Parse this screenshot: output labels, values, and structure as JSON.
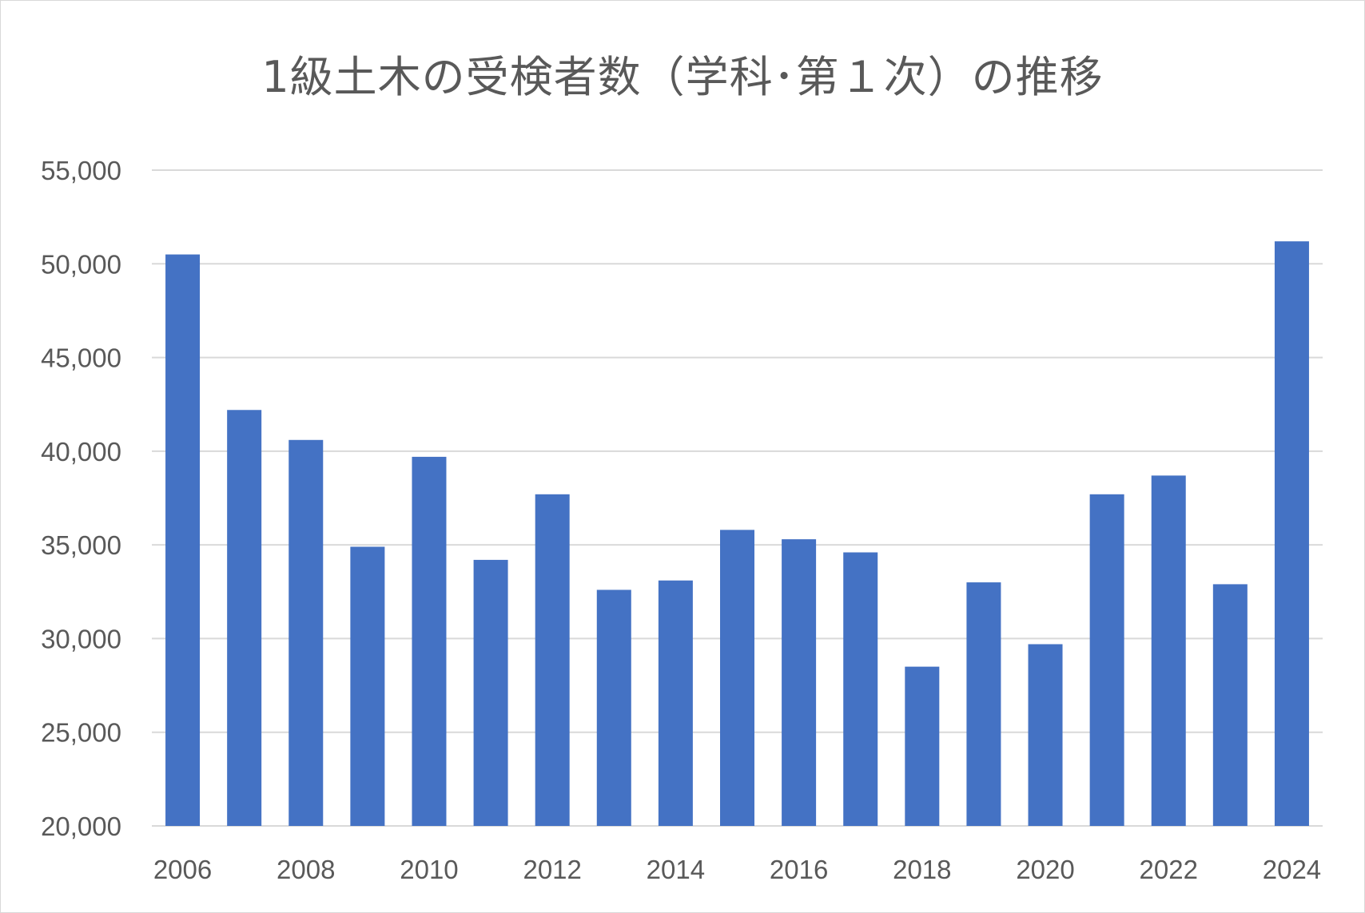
{
  "chart_data": {
    "type": "bar",
    "title": "1級土木の受検者数（学科･第１次）の推移",
    "xlabel": "",
    "ylabel": "",
    "categories": [
      "2006",
      "2007",
      "2008",
      "2009",
      "2010",
      "2011",
      "2012",
      "2013",
      "2014",
      "2015",
      "2016",
      "2017",
      "2018",
      "2019",
      "2020",
      "2021",
      "2022",
      "2023",
      "2024"
    ],
    "x_tick_labels": [
      "2006",
      "2008",
      "2010",
      "2012",
      "2014",
      "2016",
      "2018",
      "2020",
      "2022",
      "2024"
    ],
    "values": [
      50500,
      42200,
      40600,
      34900,
      39700,
      34200,
      37700,
      32600,
      33100,
      35800,
      35300,
      34600,
      28500,
      33000,
      29700,
      37700,
      38700,
      32900,
      51200
    ],
    "ylim": [
      20000,
      55000
    ],
    "y_ticks": [
      20000,
      25000,
      30000,
      35000,
      40000,
      45000,
      50000,
      55000
    ],
    "y_tick_labels": [
      "20,000",
      "25,000",
      "30,000",
      "35,000",
      "40,000",
      "45,000",
      "50,000",
      "55,000"
    ],
    "grid": true,
    "bar_color": "#4472c4",
    "grid_color": "#d9d9d9"
  }
}
